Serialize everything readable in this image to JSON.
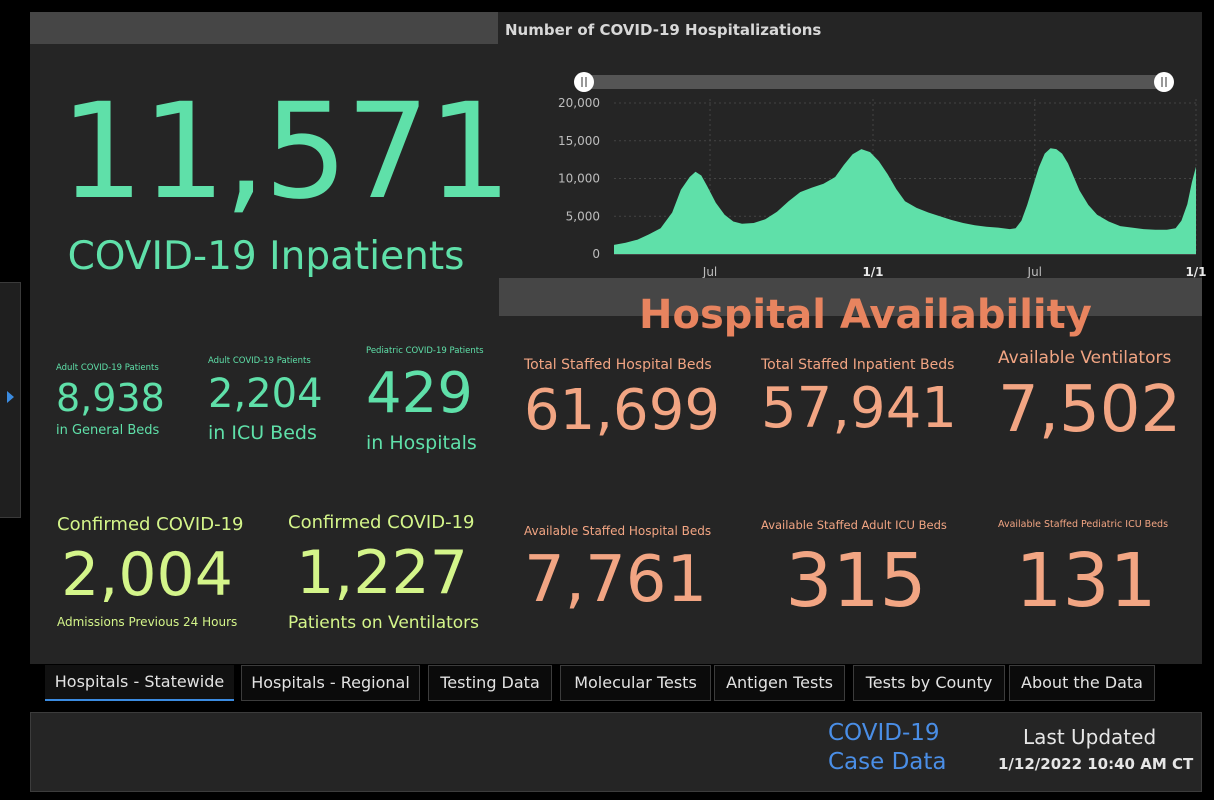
{
  "chart_title": "Number of COVID-19 Hospitalizations",
  "headline": {
    "value": "11,571",
    "label": "COVID-19 Inpatients"
  },
  "patients": [
    {
      "caption": "Adult COVID-19 Patients",
      "value": "8,938",
      "sub": "in General Beds"
    },
    {
      "caption": "Adult COVID-19 Patients",
      "value": "2,204",
      "sub": "in ICU Beds"
    },
    {
      "caption": "Pediatric COVID-19 Patients",
      "value": "429",
      "sub": "in Hospitals"
    }
  ],
  "confirmed": [
    {
      "caption": "Confirmed COVID-19",
      "value": "2,004",
      "sub": "Admissions Previous 24 Hours"
    },
    {
      "caption": "Confirmed COVID-19",
      "value": "1,227",
      "sub": "Patients on Ventilators"
    }
  ],
  "availability_title": "Hospital Availability",
  "capacity": [
    {
      "caption": "Total Staffed Hospital Beds",
      "value": "61,699"
    },
    {
      "caption": "Total Staffed Inpatient Beds",
      "value": "57,941"
    },
    {
      "caption": "Available Ventilators",
      "value": "7,502"
    },
    {
      "caption": "Available Staffed Hospital Beds",
      "value": "7,761"
    },
    {
      "caption": "Available Staffed Adult ICU Beds",
      "value": "315"
    },
    {
      "caption": "Available Staffed Pediatric ICU Beds",
      "value": "131"
    }
  ],
  "tabs": [
    {
      "label": "Hospitals - Statewide",
      "active": true
    },
    {
      "label": "Hospitals - Regional"
    },
    {
      "label": "Testing Data"
    },
    {
      "label": "Molecular Tests"
    },
    {
      "label": "Antigen Tests"
    },
    {
      "label": "Tests by County"
    },
    {
      "label": "About the Data"
    }
  ],
  "footer": {
    "case_link_line1": "COVID-19",
    "case_link_line2": "Case Data",
    "updated_label": "Last Updated",
    "updated_value": "1/12/2022 10:40 AM CT"
  },
  "colors": {
    "green": "#5fe0a9",
    "lime": "#d4f58a",
    "salmon": "#f2a583",
    "accent": "#3b8be0"
  },
  "chart_data": {
    "type": "area",
    "title": "Number of COVID-19 Hospitalizations",
    "ylim": [
      0,
      20000
    ],
    "yticks": [
      "0",
      "5,000",
      "10,000",
      "15,000",
      "20,000"
    ],
    "xticks": [
      {
        "label": "Jul",
        "bold": false
      },
      {
        "label": "1/1",
        "bold": true
      },
      {
        "label": "Jul",
        "bold": false
      },
      {
        "label": "1/1",
        "bold": true
      }
    ],
    "x_range": [
      0,
      100
    ],
    "xtick_positions": [
      16.5,
      44.5,
      72.3,
      100
    ],
    "series": [
      {
        "name": "Hospitalizations",
        "points": [
          [
            0,
            1200
          ],
          [
            2,
            1500
          ],
          [
            4,
            1900
          ],
          [
            6,
            2600
          ],
          [
            8,
            3400
          ],
          [
            10,
            5500
          ],
          [
            11.5,
            8500
          ],
          [
            13,
            10200
          ],
          [
            14,
            10900
          ],
          [
            15,
            10400
          ],
          [
            16,
            9000
          ],
          [
            17.5,
            6800
          ],
          [
            19,
            5200
          ],
          [
            20.5,
            4300
          ],
          [
            22,
            4000
          ],
          [
            24,
            4100
          ],
          [
            26,
            4600
          ],
          [
            28,
            5600
          ],
          [
            30,
            7000
          ],
          [
            32,
            8200
          ],
          [
            34,
            8800
          ],
          [
            36,
            9300
          ],
          [
            38,
            10200
          ],
          [
            39.5,
            11800
          ],
          [
            41,
            13200
          ],
          [
            42.5,
            13900
          ],
          [
            44,
            13500
          ],
          [
            45.5,
            12300
          ],
          [
            47,
            10600
          ],
          [
            48.5,
            8600
          ],
          [
            50,
            7000
          ],
          [
            52,
            6100
          ],
          [
            54,
            5500
          ],
          [
            56,
            5000
          ],
          [
            58,
            4500
          ],
          [
            60,
            4100
          ],
          [
            62,
            3800
          ],
          [
            64,
            3600
          ],
          [
            66,
            3500
          ],
          [
            68,
            3300
          ],
          [
            69,
            3400
          ],
          [
            70,
            4400
          ],
          [
            71,
            6500
          ],
          [
            72,
            9000
          ],
          [
            73,
            11500
          ],
          [
            74,
            13300
          ],
          [
            75,
            14000
          ],
          [
            76,
            13900
          ],
          [
            77,
            13300
          ],
          [
            78,
            12000
          ],
          [
            79,
            10200
          ],
          [
            80,
            8400
          ],
          [
            81.5,
            6500
          ],
          [
            83,
            5200
          ],
          [
            85,
            4300
          ],
          [
            87,
            3700
          ],
          [
            89,
            3500
          ],
          [
            91,
            3300
          ],
          [
            93,
            3200
          ],
          [
            95,
            3200
          ],
          [
            96.5,
            3400
          ],
          [
            97.5,
            4400
          ],
          [
            98.5,
            6600
          ],
          [
            99.3,
            9500
          ],
          [
            100,
            11571
          ]
        ]
      }
    ]
  }
}
